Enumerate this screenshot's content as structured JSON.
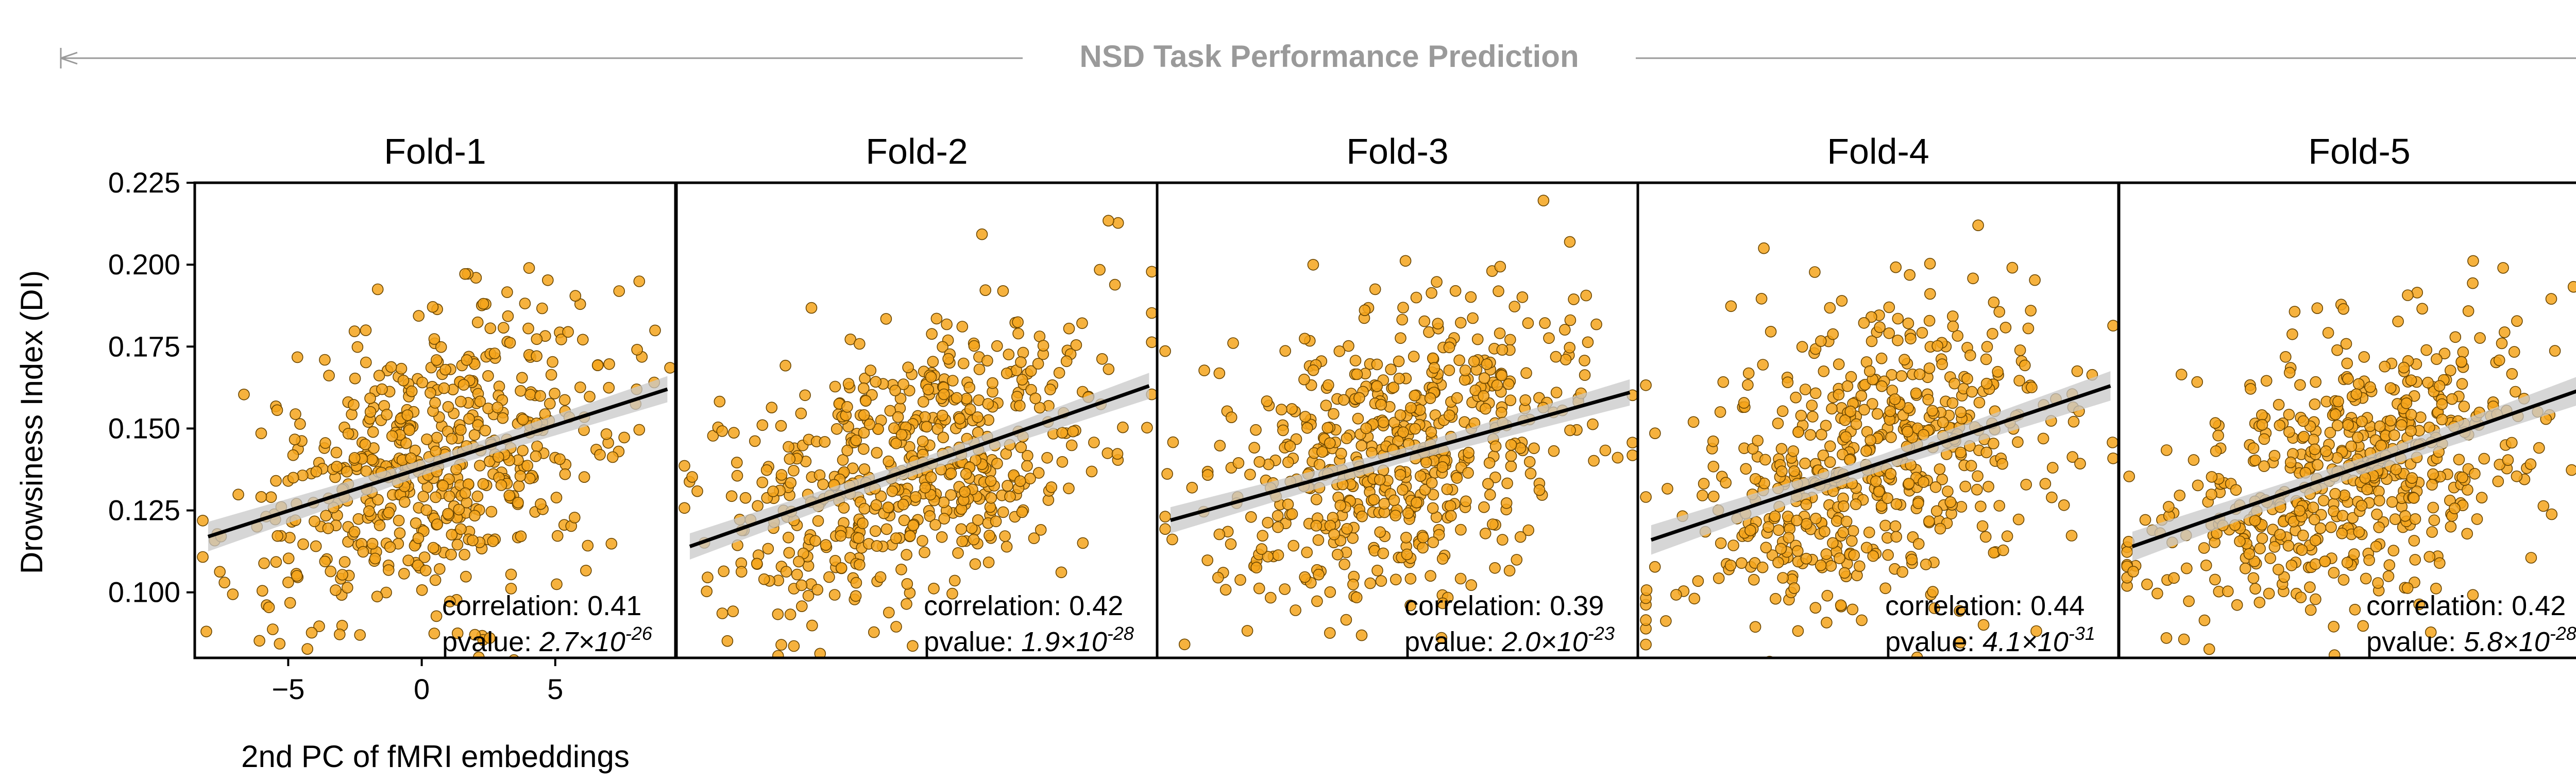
{
  "chart_data": {
    "type": "scatter",
    "suptitle": "NSD Task Performance Prediction",
    "xlabel": "2nd PC of fMRI embeddings",
    "ylabel": "Drowsiness Index (DI)",
    "xlim": [
      -8.5,
      9.5
    ],
    "ylim": [
      0.08,
      0.225
    ],
    "xticks": [
      -5,
      0,
      5
    ],
    "xtick_labels": [
      "−5",
      "0",
      "5"
    ],
    "yticks": [
      0.1,
      0.125,
      0.15,
      0.175,
      0.2,
      0.225
    ],
    "ytick_labels": [
      "0.100",
      "0.125",
      "0.150",
      "0.175",
      "0.200",
      "0.225"
    ],
    "point_color": "#f5a41c",
    "edge_color": "#6b4600",
    "fit_line_color": "#000000",
    "ci_band_color": "#c8c8c8",
    "correlation_label": "correlation:",
    "pvalue_label": "pvalue:",
    "panels": [
      {
        "title": "Fold-1",
        "correlation": "0.41",
        "pvalue_mant": "2.7×10",
        "pvalue_exp": "-26",
        "fit": {
          "x0": -8.0,
          "y0": 0.117,
          "x1": 9.2,
          "y1": 0.162,
          "ci0": 0.0045,
          "ci1": 0.004
        }
      },
      {
        "title": "Fold-2",
        "correlation": "0.42",
        "pvalue_mant": "1.9×10",
        "pvalue_exp": "-28",
        "fit": {
          "x0": -8.0,
          "y0": 0.114,
          "x1": 9.2,
          "y1": 0.163,
          "ci0": 0.004,
          "ci1": 0.004
        }
      },
      {
        "title": "Fold-3",
        "correlation": "0.39",
        "pvalue_mant": "2.0×10",
        "pvalue_exp": "-23",
        "fit": {
          "x0": -8.0,
          "y0": 0.122,
          "x1": 9.2,
          "y1": 0.161,
          "ci0": 0.004,
          "ci1": 0.004
        }
      },
      {
        "title": "Fold-4",
        "correlation": "0.44",
        "pvalue_mant": "4.1×10",
        "pvalue_exp": "-31",
        "fit": {
          "x0": -8.0,
          "y0": 0.116,
          "x1": 9.2,
          "y1": 0.163,
          "ci0": 0.0045,
          "ci1": 0.0045
        }
      },
      {
        "title": "Fold-5",
        "correlation": "0.42",
        "pvalue_mant": "5.8×10",
        "pvalue_exp": "-28",
        "fit": {
          "x0": -8.0,
          "y0": 0.114,
          "x1": 9.2,
          "y1": 0.163,
          "ci0": 0.0045,
          "ci1": 0.0045
        }
      }
    ]
  }
}
